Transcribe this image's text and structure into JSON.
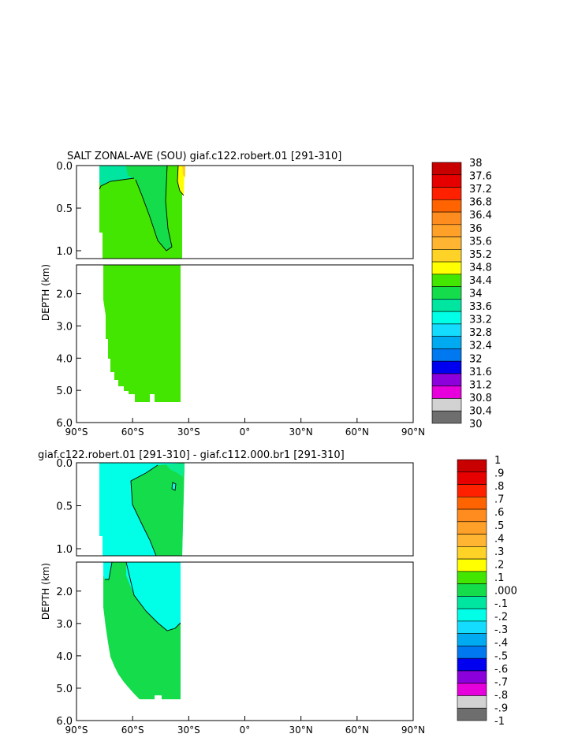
{
  "chart_data": [
    {
      "type": "contour",
      "title": "SALT ZONAL-AVE (SOU) giaf.c122.robert.01 [291-310]",
      "ylabel": "DEPTH (km)",
      "x_ticks": [
        "90°S",
        "60°S",
        "30°S",
        "0°",
        "30°N",
        "60°N",
        "90°N"
      ],
      "xlim": [
        -90,
        90
      ],
      "y_ticks_upper": [
        "0.0",
        "0.5",
        "1.0"
      ],
      "y_ticks_lower": [
        "2.0",
        "3.0",
        "4.0",
        "5.0",
        "6.0"
      ],
      "ylim_upper": [
        0,
        1.1
      ],
      "ylim_lower": [
        1.1,
        6.0
      ],
      "colorbar_labels": [
        "38",
        "37.6",
        "37.2",
        "36.8",
        "36.4",
        "36",
        "35.6",
        "35.2",
        "34.8",
        "34.4",
        "34",
        "33.6",
        "33.2",
        "32.8",
        "32.4",
        "32",
        "31.6",
        "31.2",
        "30.8",
        "30.4",
        "30"
      ],
      "colorbar_colors": [
        "#c80000",
        "#e60000",
        "#ff2000",
        "#ff6400",
        "#ff8c1e",
        "#ffa028",
        "#ffb432",
        "#ffd228",
        "#ffff00",
        "#42e600",
        "#14dc4b",
        "#00e6a0",
        "#00ffe6",
        "#14dcff",
        "#00aaf0",
        "#0078f0",
        "#0000f0",
        "#8c00dc",
        "#e600dc",
        "#d2d2d2",
        "#6e6e6e"
      ],
      "fill_colors": {
        "bg": "#42e600",
        "fresh": "#00e6a0",
        "salty": "#ffd228"
      }
    },
    {
      "type": "contour",
      "title": "giaf.c122.robert.01 [291-310] - giaf.c112.000.br1 [291-310]",
      "ylabel": "DEPTH (km)",
      "x_ticks": [
        "90°S",
        "60°S",
        "30°S",
        "0°",
        "30°N",
        "60°N",
        "90°N"
      ],
      "xlim": [
        -90,
        90
      ],
      "y_ticks_upper": [
        "0.0",
        "0.5",
        "1.0"
      ],
      "y_ticks_lower": [
        "2.0",
        "3.0",
        "4.0",
        "5.0",
        "6.0"
      ],
      "ylim_upper": [
        0,
        1.1
      ],
      "ylim_lower": [
        1.1,
        6.0
      ],
      "colorbar_labels": [
        "1",
        ".9",
        ".8",
        ".7",
        ".6",
        ".5",
        ".4",
        ".3",
        ".2",
        ".1",
        ".000",
        "-.1",
        "-.2",
        "-.3",
        "-.4",
        "-.5",
        "-.6",
        "-.7",
        "-.8",
        "-.9",
        "-1"
      ],
      "colorbar_colors": [
        "#c80000",
        "#e60000",
        "#ff2000",
        "#ff6400",
        "#ff8c1e",
        "#ffa028",
        "#ffb432",
        "#ffd228",
        "#ffff00",
        "#42e600",
        "#14dc4b",
        "#00e6a0",
        "#00ffe6",
        "#14dcff",
        "#00aaf0",
        "#0078f0",
        "#0000f0",
        "#8c00dc",
        "#e600dc",
        "#d2d2d2",
        "#6e6e6e"
      ],
      "fill_colors": {
        "pos": "#14dc4b",
        "neg": "#00ffe6"
      }
    }
  ]
}
